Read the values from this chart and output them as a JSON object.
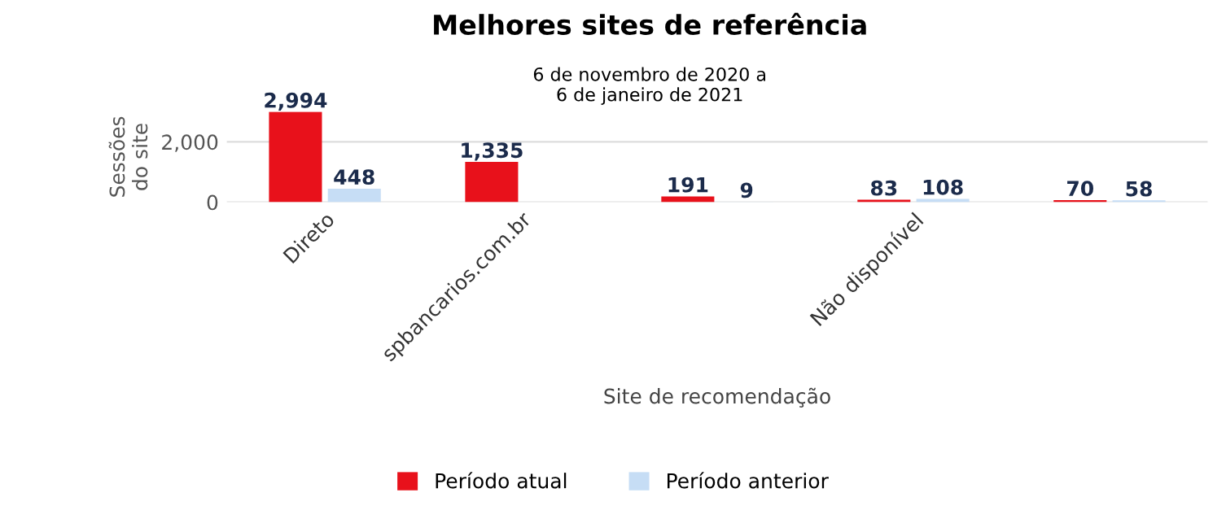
{
  "chart_data": {
    "type": "bar",
    "title": "Melhores sites de referência",
    "subtitle": "6 de novembro de 2020 a\n6 de janeiro de 2021",
    "xlabel": "Site de recomendação",
    "ylabel": "Sessões\ndo site",
    "categories": [
      "Direto",
      "spbancarios.com.br",
      null,
      "Não disponível",
      null
    ],
    "series": [
      {
        "name": "Período atual",
        "color": "#e8111b",
        "values": [
          2994,
          1335,
          191,
          83,
          70
        ],
        "value_labels": [
          "2,994",
          "1,335",
          "191",
          "83",
          "70"
        ]
      },
      {
        "name": "Período anterior",
        "color": "#c6ddf5",
        "values": [
          448,
          null,
          9,
          108,
          58
        ],
        "value_labels": [
          "448",
          null,
          "9",
          "108",
          "58"
        ]
      }
    ],
    "ylim": [
      0,
      3000
    ],
    "yticks": [
      0,
      {
        "value": 2000,
        "label": "2,000"
      }
    ],
    "grid": "y",
    "legend": "bottom"
  }
}
